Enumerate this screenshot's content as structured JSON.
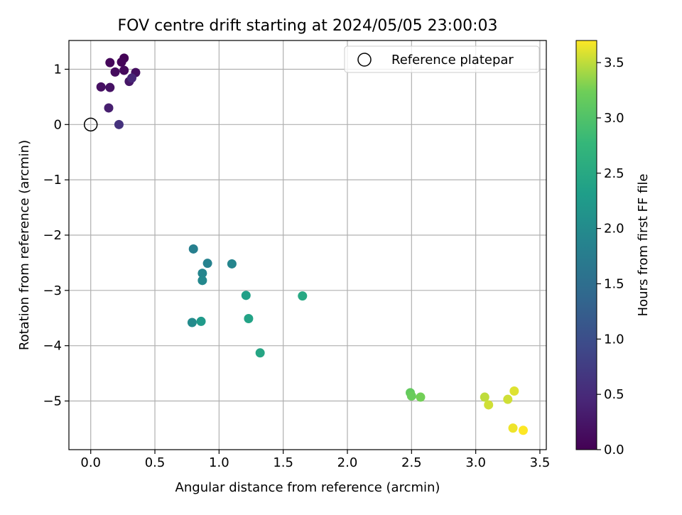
{
  "chart_data": {
    "type": "scatter",
    "title": "FOV centre drift starting at 2024/05/05 23:00:03",
    "xlabel": "Angular distance from reference (arcmin)",
    "ylabel": "Rotation from reference (arcmin)",
    "xlim": [
      -0.17,
      3.55
    ],
    "ylim": [
      -5.88,
      1.52
    ],
    "xticks": [
      0.0,
      0.5,
      1.0,
      1.5,
      2.0,
      2.5,
      3.0,
      3.5
    ],
    "xtick_labels": [
      "0.0",
      "0.5",
      "1.0",
      "1.5",
      "2.0",
      "2.5",
      "3.0",
      "3.5"
    ],
    "yticks": [
      -5,
      -4,
      -3,
      -2,
      -1,
      0,
      1
    ],
    "ytick_labels": [
      "−5",
      "−4",
      "−3",
      "−2",
      "−1",
      "0",
      "1"
    ],
    "grid": true,
    "legend_position": "top-right",
    "legend": [
      {
        "label": "Reference platepar",
        "marker": "open-circle"
      }
    ],
    "reference_point": {
      "x": 0.0,
      "y": 0.0
    },
    "colorbar": {
      "label": "Hours from first FF file",
      "colormap": "viridis",
      "range": [
        0.0,
        3.7
      ],
      "ticks": [
        0.0,
        0.5,
        1.0,
        1.5,
        2.0,
        2.5,
        3.0,
        3.5
      ],
      "tick_labels": [
        "0.0",
        "0.5",
        "1.0",
        "1.5",
        "2.0",
        "2.5",
        "3.0",
        "3.5"
      ]
    },
    "points": [
      {
        "x": 0.26,
        "y": 1.2,
        "hours": 0.02
      },
      {
        "x": 0.24,
        "y": 1.13,
        "hours": 0.05
      },
      {
        "x": 0.15,
        "y": 1.12,
        "hours": 0.08
      },
      {
        "x": 0.26,
        "y": 0.98,
        "hours": 0.1
      },
      {
        "x": 0.19,
        "y": 0.95,
        "hours": 0.12
      },
      {
        "x": 0.35,
        "y": 0.94,
        "hours": 0.15
      },
      {
        "x": 0.08,
        "y": 0.68,
        "hours": 0.18
      },
      {
        "x": 0.15,
        "y": 0.67,
        "hours": 0.2
      },
      {
        "x": 0.3,
        "y": 0.78,
        "hours": 0.25
      },
      {
        "x": 0.14,
        "y": 0.3,
        "hours": 0.35
      },
      {
        "x": 0.32,
        "y": 0.84,
        "hours": 0.45
      },
      {
        "x": 0.22,
        "y": 0.0,
        "hours": 0.6
      },
      {
        "x": 0.8,
        "y": -2.25,
        "hours": 1.8
      },
      {
        "x": 0.91,
        "y": -2.51,
        "hours": 1.85
      },
      {
        "x": 0.87,
        "y": -2.69,
        "hours": 1.9
      },
      {
        "x": 1.1,
        "y": -2.52,
        "hours": 1.9
      },
      {
        "x": 0.87,
        "y": -2.82,
        "hours": 1.95
      },
      {
        "x": 0.79,
        "y": -3.58,
        "hours": 2.0
      },
      {
        "x": 0.86,
        "y": -3.56,
        "hours": 2.25
      },
      {
        "x": 1.21,
        "y": -3.09,
        "hours": 2.35
      },
      {
        "x": 1.23,
        "y": -3.51,
        "hours": 2.4
      },
      {
        "x": 1.32,
        "y": -4.13,
        "hours": 2.45
      },
      {
        "x": 1.65,
        "y": -3.1,
        "hours": 2.5
      },
      {
        "x": 2.49,
        "y": -4.85,
        "hours": 3.15
      },
      {
        "x": 2.5,
        "y": -4.91,
        "hours": 3.2
      },
      {
        "x": 2.57,
        "y": -4.93,
        "hours": 3.25
      },
      {
        "x": 3.07,
        "y": -4.93,
        "hours": 3.5
      },
      {
        "x": 3.1,
        "y": -5.07,
        "hours": 3.55
      },
      {
        "x": 3.25,
        "y": -4.97,
        "hours": 3.55
      },
      {
        "x": 3.3,
        "y": -4.82,
        "hours": 3.6
      },
      {
        "x": 3.29,
        "y": -5.49,
        "hours": 3.65
      },
      {
        "x": 3.37,
        "y": -5.53,
        "hours": 3.7
      }
    ]
  }
}
